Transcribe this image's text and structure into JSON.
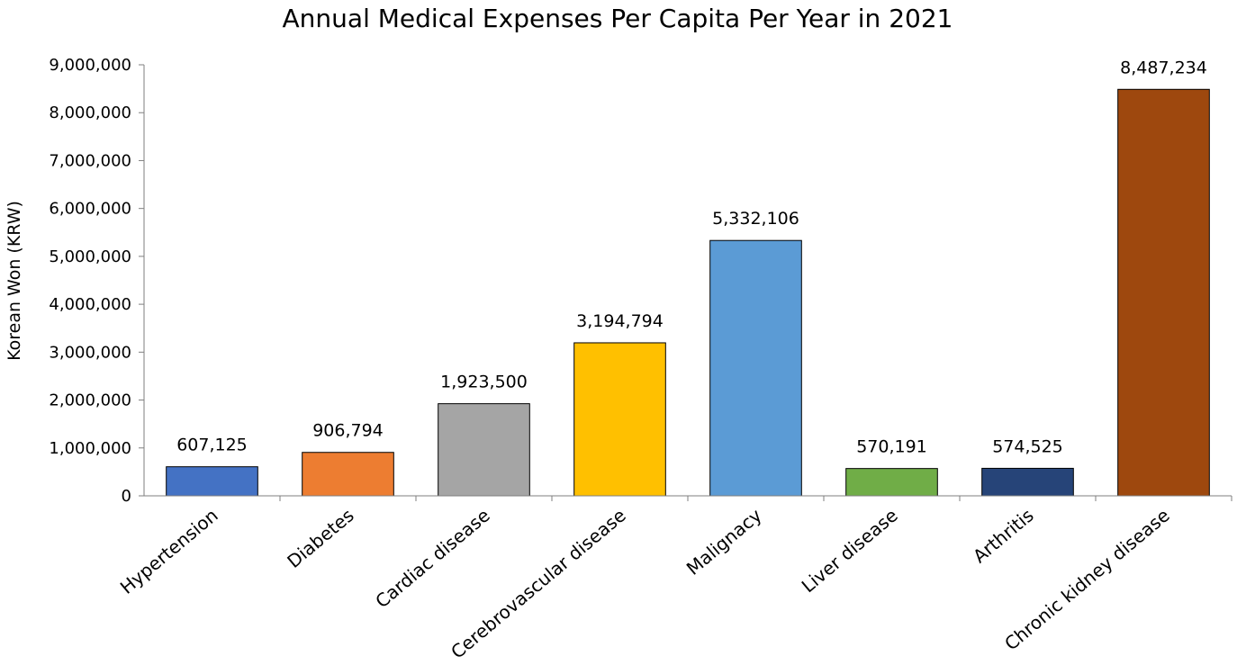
{
  "chart_data": {
    "type": "bar",
    "title": "Annual Medical Expenses Per Capita Per Year in 2021",
    "xlabel": "",
    "ylabel": "Korean Won (KRW)",
    "ylim": [
      0,
      9000000
    ],
    "yticks": [
      0,
      1000000,
      2000000,
      3000000,
      4000000,
      5000000,
      6000000,
      7000000,
      8000000,
      9000000
    ],
    "grid": false,
    "legend": "none",
    "categories": [
      "Hypertension",
      "Diabetes",
      "Cardiac disease",
      "Cerebrovascular disease",
      "Malignacy",
      "Liver disease",
      "Arthritis",
      "Chronic kidney disease"
    ],
    "values": [
      607125,
      906794,
      1923500,
      3194794,
      5332106,
      570191,
      574525,
      8487234
    ],
    "colors": [
      "#4472c4",
      "#ed7d31",
      "#a5a5a5",
      "#ffc000",
      "#5b9bd5",
      "#70ad47",
      "#264478",
      "#9e480e"
    ]
  }
}
